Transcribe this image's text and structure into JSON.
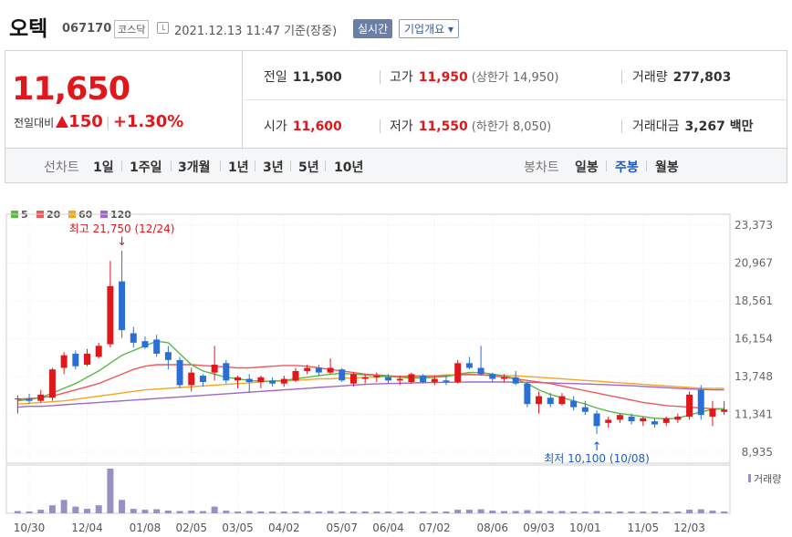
{
  "header": {
    "name": "오텍",
    "code": "067170",
    "market": "코스닥",
    "time": "2021.12.13 11:47 기준(장중)",
    "realtime_label": "실시간",
    "info_label": "기업개요 ▾"
  },
  "quote": {
    "price": "11,650",
    "change_label": "전일대비",
    "change_amount": "150",
    "change_pct": "+1.30%",
    "prev_label": "전일",
    "prev": "11,500",
    "open_label": "시가",
    "open": "11,600",
    "high_label": "고가",
    "high": "11,950",
    "upper_limit": "(상한가 14,950)",
    "low_label": "저가",
    "low": "11,550",
    "lower_limit": "(하한가 8,050)",
    "volume_label": "거래량",
    "volume": "277,803",
    "amount_label": "거래대금",
    "amount": "3,267 백만"
  },
  "period_bar": {
    "line_group_label": "선차트",
    "line_items": [
      "1일",
      "1주일",
      "3개월",
      "1년",
      "3년",
      "5년",
      "10년"
    ],
    "candle_group_label": "봉차트",
    "candle_items": [
      "일봉",
      "주봉",
      "월봉"
    ],
    "selected": "주봉"
  },
  "colors": {
    "up": "#e0171b",
    "down": "#2a6fd6",
    "ma5": "#58b947",
    "ma20": "#f0575a",
    "ma60": "#f5a623",
    "ma120": "#a066c9",
    "volume": "#9a8fc5"
  },
  "chart_data": {
    "type": "candlestick",
    "legend": [
      {
        "name": "5",
        "color": "#58b947"
      },
      {
        "name": "20",
        "color": "#f0575a"
      },
      {
        "name": "60",
        "color": "#f5a623"
      },
      {
        "name": "120",
        "color": "#a066c9"
      }
    ],
    "y_ticks": [
      {
        "value": 23373,
        "label": "23,373"
      },
      {
        "value": 20967,
        "label": "20,967"
      },
      {
        "value": 18561,
        "label": "18,561"
      },
      {
        "value": 16154,
        "label": "16,154"
      },
      {
        "value": 13748,
        "label": "13,748"
      },
      {
        "value": 11341,
        "label": "11,341"
      },
      {
        "value": 8935,
        "label": "8,935"
      }
    ],
    "ylim": [
      8935,
      23373
    ],
    "x_tick_labels": [
      {
        "index": 1,
        "label": "10/30"
      },
      {
        "index": 6,
        "label": "12/04"
      },
      {
        "index": 11,
        "label": "01/08"
      },
      {
        "index": 15,
        "label": "02/05"
      },
      {
        "index": 19,
        "label": "03/05"
      },
      {
        "index": 23,
        "label": "04/02"
      },
      {
        "index": 28,
        "label": "05/07"
      },
      {
        "index": 32,
        "label": "06/04"
      },
      {
        "index": 36,
        "label": "07/02"
      },
      {
        "index": 41,
        "label": "08/06"
      },
      {
        "index": 45,
        "label": "09/03"
      },
      {
        "index": 49,
        "label": "10/01"
      },
      {
        "index": 54,
        "label": "11/05"
      },
      {
        "index": 58,
        "label": "12/03"
      }
    ],
    "candles": [
      [
        12300,
        12550,
        11400,
        12350
      ],
      [
        12350,
        12650,
        12000,
        12200
      ],
      [
        12200,
        12900,
        12100,
        12600
      ],
      [
        12400,
        14300,
        12200,
        14200
      ],
      [
        14300,
        15300,
        13900,
        15100
      ],
      [
        15200,
        15400,
        14200,
        14400
      ],
      [
        14500,
        15500,
        14400,
        15200
      ],
      [
        15000,
        15900,
        14900,
        15700
      ],
      [
        15800,
        21100,
        15600,
        19500
      ],
      [
        19800,
        21750,
        16200,
        16700
      ],
      [
        16500,
        16900,
        15600,
        15900
      ],
      [
        16000,
        16300,
        15500,
        15600
      ],
      [
        16100,
        16400,
        15000,
        15200
      ],
      [
        15300,
        15700,
        14200,
        14800
      ],
      [
        14800,
        15000,
        13000,
        13200
      ],
      [
        13200,
        14300,
        12800,
        14000
      ],
      [
        13800,
        13900,
        13100,
        13400
      ],
      [
        14000,
        15700,
        13500,
        14500
      ],
      [
        14600,
        14800,
        13300,
        13500
      ],
      [
        13500,
        13800,
        13000,
        13700
      ],
      [
        13600,
        13900,
        12700,
        13400
      ],
      [
        13400,
        13800,
        13000,
        13700
      ],
      [
        13500,
        13700,
        13100,
        13300
      ],
      [
        13300,
        13800,
        13100,
        13600
      ],
      [
        13500,
        14300,
        13400,
        14100
      ],
      [
        14100,
        14500,
        13900,
        14300
      ],
      [
        14300,
        14500,
        13800,
        14000
      ],
      [
        14000,
        14900,
        13900,
        14300
      ],
      [
        14200,
        14300,
        13400,
        13500
      ],
      [
        13300,
        14000,
        13100,
        13900
      ],
      [
        13600,
        13900,
        13300,
        13700
      ],
      [
        13700,
        14000,
        13400,
        13800
      ],
      [
        13700,
        13900,
        13300,
        13500
      ],
      [
        13500,
        13800,
        13200,
        13600
      ],
      [
        13400,
        14000,
        13300,
        13900
      ],
      [
        13800,
        13900,
        13300,
        13400
      ],
      [
        13400,
        13800,
        13200,
        13600
      ],
      [
        13500,
        13800,
        13200,
        13400
      ],
      [
        13400,
        14800,
        13300,
        14600
      ],
      [
        14600,
        15000,
        14200,
        14300
      ],
      [
        14300,
        15700,
        13800,
        13900
      ],
      [
        13900,
        14000,
        13400,
        13600
      ],
      [
        13600,
        13900,
        13400,
        13700
      ],
      [
        13700,
        14100,
        13200,
        13300
      ],
      [
        13300,
        13400,
        11800,
        12000
      ],
      [
        12000,
        12800,
        11400,
        12500
      ],
      [
        12400,
        12700,
        11800,
        12000
      ],
      [
        12000,
        12700,
        11900,
        12500
      ],
      [
        12200,
        12500,
        11600,
        11800
      ],
      [
        11800,
        12200,
        11300,
        11500
      ],
      [
        11400,
        11600,
        10100,
        10600
      ],
      [
        10800,
        11200,
        10500,
        11000
      ],
      [
        11000,
        11400,
        10800,
        11300
      ],
      [
        11200,
        11400,
        10700,
        10900
      ],
      [
        10900,
        11200,
        10600,
        11100
      ],
      [
        10900,
        11100,
        10500,
        10700
      ],
      [
        10800,
        11200,
        10600,
        11100
      ],
      [
        11000,
        11400,
        10800,
        11200
      ],
      [
        11200,
        12800,
        11000,
        12600
      ],
      [
        12900,
        13200,
        11000,
        11300
      ],
      [
        11200,
        12200,
        10600,
        11700
      ],
      [
        11500,
        12200,
        11300,
        11650
      ]
    ],
    "ma5": [
      12200,
      12300,
      12400,
      12700,
      13000,
      13300,
      13700,
      14100,
      14600,
      15100,
      15400,
      15700,
      16000,
      15900,
      15200,
      14500,
      14100,
      13900,
      13700,
      13600,
      13500,
      13450,
      13450,
      13500,
      13600,
      13700,
      13800,
      13900,
      13950,
      13900,
      13850,
      13800,
      13750,
      13700,
      13650,
      13650,
      13700,
      13750,
      13900,
      14000,
      14000,
      13900,
      13800,
      13600,
      13300,
      12900,
      12600,
      12400,
      12200,
      12000,
      11750,
      11550,
      11400,
      11300,
      11200,
      11100,
      11050,
      11100,
      11300,
      11500,
      11650,
      11700
    ],
    "ma20": [
      12300,
      12350,
      12400,
      12500,
      12700,
      12900,
      13100,
      13300,
      13600,
      13900,
      14200,
      14400,
      14500,
      14500,
      14500,
      14500,
      14450,
      14400,
      14350,
      14300,
      14300,
      14350,
      14400,
      14450,
      14450,
      14400,
      14300,
      14200,
      14100,
      14000,
      13900,
      13850,
      13800,
      13750,
      13750,
      13750,
      13750,
      13800,
      13850,
      13900,
      13850,
      13800,
      13700,
      13600,
      13500,
      13400,
      13300,
      13150,
      13000,
      12850,
      12700,
      12550,
      12400,
      12250,
      12100,
      12000,
      11900,
      11850,
      11800,
      11750,
      11700,
      11700
    ],
    "ma60": [
      12000,
      12050,
      12100,
      12150,
      12200,
      12300,
      12400,
      12500,
      12600,
      12700,
      12800,
      12900,
      12950,
      13000,
      13050,
      13100,
      13150,
      13200,
      13250,
      13300,
      13350,
      13400,
      13450,
      13450,
      13500,
      13550,
      13600,
      13600,
      13650,
      13650,
      13700,
      13700,
      13750,
      13750,
      13800,
      13800,
      13800,
      13850,
      13850,
      13850,
      13850,
      13850,
      13800,
      13800,
      13750,
      13700,
      13650,
      13600,
      13550,
      13500,
      13450,
      13400,
      13350,
      13300,
      13250,
      13200,
      13150,
      13100,
      13050,
      13000,
      13000,
      13000
    ],
    "ma120": [
      11800,
      11850,
      11850,
      11900,
      11950,
      12000,
      12050,
      12100,
      12150,
      12200,
      12250,
      12300,
      12350,
      12400,
      12450,
      12500,
      12550,
      12600,
      12650,
      12700,
      12750,
      12800,
      12850,
      12900,
      12950,
      13000,
      13050,
      13100,
      13150,
      13200,
      13250,
      13280,
      13300,
      13320,
      13340,
      13360,
      13370,
      13380,
      13390,
      13400,
      13400,
      13400,
      13400,
      13390,
      13380,
      13360,
      13340,
      13320,
      13300,
      13280,
      13250,
      13220,
      13190,
      13160,
      13120,
      13080,
      13040,
      13000,
      12960,
      12930,
      12900,
      12900
    ],
    "volume": [
      0.05,
      0.04,
      0.08,
      0.18,
      0.3,
      0.15,
      0.1,
      0.18,
      1.0,
      0.3,
      0.1,
      0.08,
      0.09,
      0.06,
      0.05,
      0.06,
      0.05,
      0.15,
      0.06,
      0.04,
      0.05,
      0.04,
      0.04,
      0.04,
      0.04,
      0.05,
      0.04,
      0.05,
      0.04,
      0.04,
      0.04,
      0.04,
      0.04,
      0.04,
      0.04,
      0.04,
      0.04,
      0.04,
      0.08,
      0.08,
      0.09,
      0.06,
      0.05,
      0.05,
      0.07,
      0.05,
      0.05,
      0.05,
      0.04,
      0.04,
      0.05,
      0.04,
      0.04,
      0.04,
      0.04,
      0.04,
      0.04,
      0.04,
      0.08,
      0.09,
      0.06,
      0.04
    ],
    "annotations": [
      {
        "label": "최고 21,750 (12/24)",
        "index": 9,
        "price": 21750,
        "arrow": "↓",
        "color": "#e0171b"
      },
      {
        "label": "최저 10,100 (10/08)",
        "index": 50,
        "price": 10100,
        "arrow": "↑",
        "color": "#1c5bc4"
      }
    ],
    "volume_label": "거래량"
  }
}
